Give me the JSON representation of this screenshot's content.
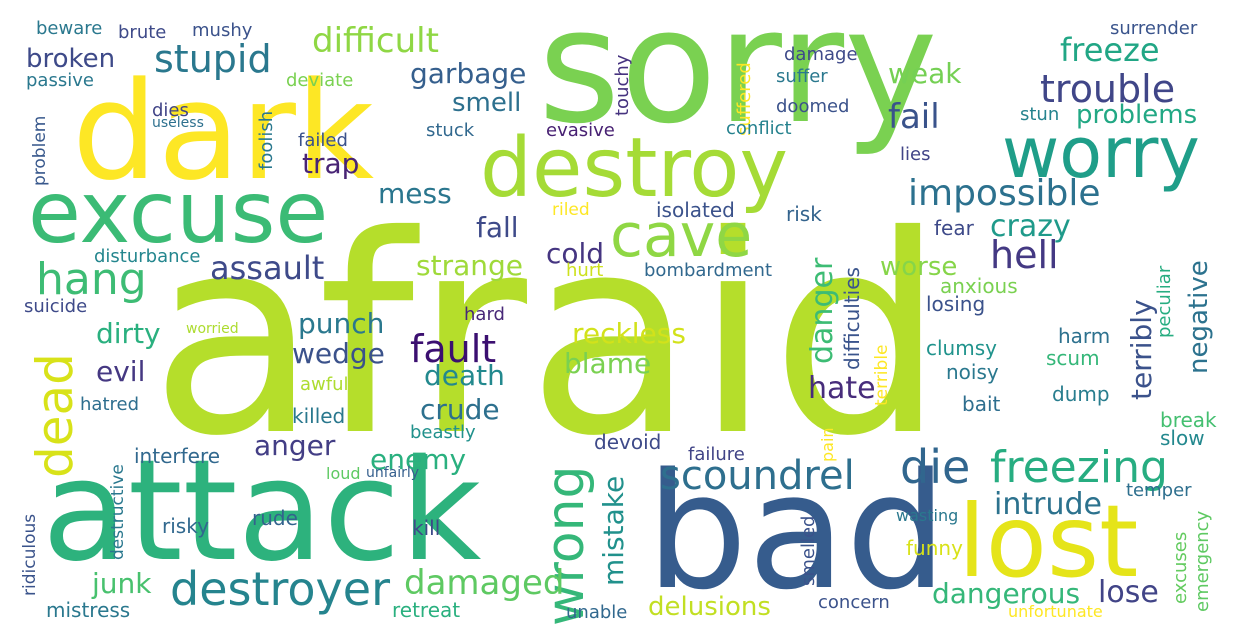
{
  "background": "#ffffff",
  "palette": [
    "#482475",
    "#414487",
    "#355f8d",
    "#2a788e",
    "#21918c",
    "#22a884",
    "#44bf70",
    "#7ad151",
    "#bddf26",
    "#fde725"
  ],
  "words": [
    {
      "text": "afraid",
      "color": "#b5de2b"
    },
    {
      "text": "sorry",
      "color": "#7ad151"
    },
    {
      "text": "attack",
      "color": "#2db27d"
    },
    {
      "text": "bad",
      "color": "#365c8d"
    },
    {
      "text": "dark",
      "color": "#fde725"
    },
    {
      "text": "excuse",
      "color": "#3bbb75"
    },
    {
      "text": "destroy",
      "color": "#a5db36"
    },
    {
      "text": "worry",
      "color": "#1f9e89"
    },
    {
      "text": "lost",
      "color": "#e5e419"
    },
    {
      "text": "wrong",
      "color": "#35b779"
    },
    {
      "text": "cave",
      "color": "#8fd744"
    },
    {
      "text": "dead",
      "color": "#d8e219"
    },
    {
      "text": "destroyer",
      "color": "#25848e"
    },
    {
      "text": "freezing",
      "color": "#27ad81"
    },
    {
      "text": "die",
      "color": "#31668e"
    },
    {
      "text": "scoundrel",
      "color": "#2e6f8e"
    },
    {
      "text": "hang",
      "color": "#3dbc74"
    },
    {
      "text": "difficult",
      "color": "#8fd744"
    },
    {
      "text": "stupid",
      "color": "#2a788e"
    },
    {
      "text": "trouble",
      "color": "#404688"
    },
    {
      "text": "impossible",
      "color": "#2c718e"
    },
    {
      "text": "damaged",
      "color": "#5ec962"
    },
    {
      "text": "freeze",
      "color": "#21a685"
    },
    {
      "text": "assault",
      "color": "#3e4a89"
    },
    {
      "text": "fault",
      "color": "#3b0f70"
    },
    {
      "text": "intrude",
      "color": "#2c728e"
    },
    {
      "text": "fail",
      "color": "#3a538b"
    },
    {
      "text": "hell",
      "color": "#443983"
    },
    {
      "text": "crazy",
      "color": "#1f9a8a"
    },
    {
      "text": "danger",
      "color": "#3dbc74"
    },
    {
      "text": "mistake",
      "color": "#21918c"
    },
    {
      "text": "problems",
      "color": "#22a884"
    },
    {
      "text": "lose",
      "color": "#414487"
    },
    {
      "text": "dangerous",
      "color": "#35b779"
    },
    {
      "text": "delusions",
      "color": "#c2df23"
    },
    {
      "text": "garbage",
      "color": "#355f8d"
    },
    {
      "text": "strange",
      "color": "#9fda3a"
    },
    {
      "text": "reckless",
      "color": "#d2e21b"
    },
    {
      "text": "blame",
      "color": "#7ad151"
    },
    {
      "text": "terribly",
      "color": "#3b528b"
    },
    {
      "text": "negative",
      "color": "#2c728e"
    },
    {
      "text": "crude",
      "color": "#2d708e"
    },
    {
      "text": "death",
      "color": "#23898e"
    },
    {
      "text": "enemy",
      "color": "#2ab07f"
    },
    {
      "text": "anger",
      "color": "#433e85"
    },
    {
      "text": "hate",
      "color": "#472d7b"
    },
    {
      "text": "fall",
      "color": "#3e4a89"
    },
    {
      "text": "cold",
      "color": "#453581"
    },
    {
      "text": "smell",
      "color": "#2d708e"
    },
    {
      "text": "trap",
      "color": "#482475"
    },
    {
      "text": "mess",
      "color": "#2a768e"
    },
    {
      "text": "weak",
      "color": "#75d054"
    },
    {
      "text": "worse",
      "color": "#86d549"
    },
    {
      "text": "wedge",
      "color": "#3b528b"
    },
    {
      "text": "punch",
      "color": "#2a788e"
    },
    {
      "text": "evil",
      "color": "#453882"
    },
    {
      "text": "dirty",
      "color": "#2ab07f"
    },
    {
      "text": "junk",
      "color": "#48c16e"
    },
    {
      "text": "broken",
      "color": "#3e4a89"
    },
    {
      "text": "difficulties",
      "color": "#3a548c"
    },
    {
      "text": "clumsy",
      "color": "#20938c"
    },
    {
      "text": "anxious",
      "color": "#7ad151"
    },
    {
      "text": "losing",
      "color": "#3b528b"
    },
    {
      "text": "noisy",
      "color": "#2a788e"
    },
    {
      "text": "harm",
      "color": "#2d718e"
    },
    {
      "text": "scum",
      "color": "#35b779"
    },
    {
      "text": "dump",
      "color": "#287d8e"
    },
    {
      "text": "bait",
      "color": "#2e6e8e"
    },
    {
      "text": "break",
      "color": "#44bf70"
    },
    {
      "text": "slow",
      "color": "#23888e"
    },
    {
      "text": "temper",
      "color": "#2e6f8e"
    },
    {
      "text": "emergency",
      "color": "#5ec962"
    },
    {
      "text": "excuses",
      "color": "#63cb5f"
    },
    {
      "text": "peculiar",
      "color": "#27ad81"
    },
    {
      "text": "terrible",
      "color": "#fde725"
    },
    {
      "text": "isolated",
      "color": "#3b528b"
    },
    {
      "text": "risk",
      "color": "#33638d"
    },
    {
      "text": "fear",
      "color": "#3e4a89"
    },
    {
      "text": "bombardment",
      "color": "#31688e"
    },
    {
      "text": "hurt",
      "color": "#cde11d"
    },
    {
      "text": "riled",
      "color": "#fde725"
    },
    {
      "text": "evasive",
      "color": "#482173"
    },
    {
      "text": "conflict",
      "color": "#26828e"
    },
    {
      "text": "stuck",
      "color": "#31688e"
    },
    {
      "text": "failed",
      "color": "#3b528b"
    },
    {
      "text": "lies",
      "color": "#414487"
    },
    {
      "text": "doomed",
      "color": "#3b528b"
    },
    {
      "text": "suffer",
      "color": "#2a788e"
    },
    {
      "text": "damage",
      "color": "#3e4a89"
    },
    {
      "text": "suffered",
      "color": "#fde725"
    },
    {
      "text": "touchy",
      "color": "#46337f"
    },
    {
      "text": "stun",
      "color": "#25838e"
    },
    {
      "text": "surrender",
      "color": "#3a548c"
    },
    {
      "text": "foolish",
      "color": "#2a788e"
    },
    {
      "text": "deviate",
      "color": "#7ad151"
    },
    {
      "text": "dies",
      "color": "#414487"
    },
    {
      "text": "passive",
      "color": "#2a788e"
    },
    {
      "text": "mushy",
      "color": "#3b528b"
    },
    {
      "text": "brute",
      "color": "#3e4a89"
    },
    {
      "text": "beware",
      "color": "#2a788e"
    },
    {
      "text": "useless",
      "color": "#2d708e"
    },
    {
      "text": "problem",
      "color": "#38588c"
    },
    {
      "text": "disturbance",
      "color": "#24868e"
    },
    {
      "text": "suicide",
      "color": "#3e4a89"
    },
    {
      "text": "worried",
      "color": "#addc30"
    },
    {
      "text": "awful",
      "color": "#addc30"
    },
    {
      "text": "hatred",
      "color": "#2e6e8e"
    },
    {
      "text": "killed",
      "color": "#2a788e"
    },
    {
      "text": "beastly",
      "color": "#21918c"
    },
    {
      "text": "interfere",
      "color": "#31688e"
    },
    {
      "text": "destructive",
      "color": "#2a788e"
    },
    {
      "text": "loud",
      "color": "#5ec962"
    },
    {
      "text": "unfairly",
      "color": "#355f8d"
    },
    {
      "text": "ridiculous",
      "color": "#3a538b"
    },
    {
      "text": "risky",
      "color": "#31688e"
    },
    {
      "text": "rude",
      "color": "#33638d"
    },
    {
      "text": "kill",
      "color": "#3e4a89"
    },
    {
      "text": "mistress",
      "color": "#2a788e"
    },
    {
      "text": "retreat",
      "color": "#2ab07f"
    },
    {
      "text": "unable",
      "color": "#31688e"
    },
    {
      "text": "concern",
      "color": "#3b528b"
    },
    {
      "text": "unfortunate",
      "color": "#fde725"
    },
    {
      "text": "pain",
      "color": "#fde725"
    },
    {
      "text": "devoid",
      "color": "#3e4a89"
    },
    {
      "text": "failure",
      "color": "#414487"
    },
    {
      "text": "smelled",
      "color": "#3b528b"
    },
    {
      "text": "wasting",
      "color": "#2a788e"
    },
    {
      "text": "funny",
      "color": "#d8e219"
    },
    {
      "text": "hard",
      "color": "#482878"
    }
  ]
}
